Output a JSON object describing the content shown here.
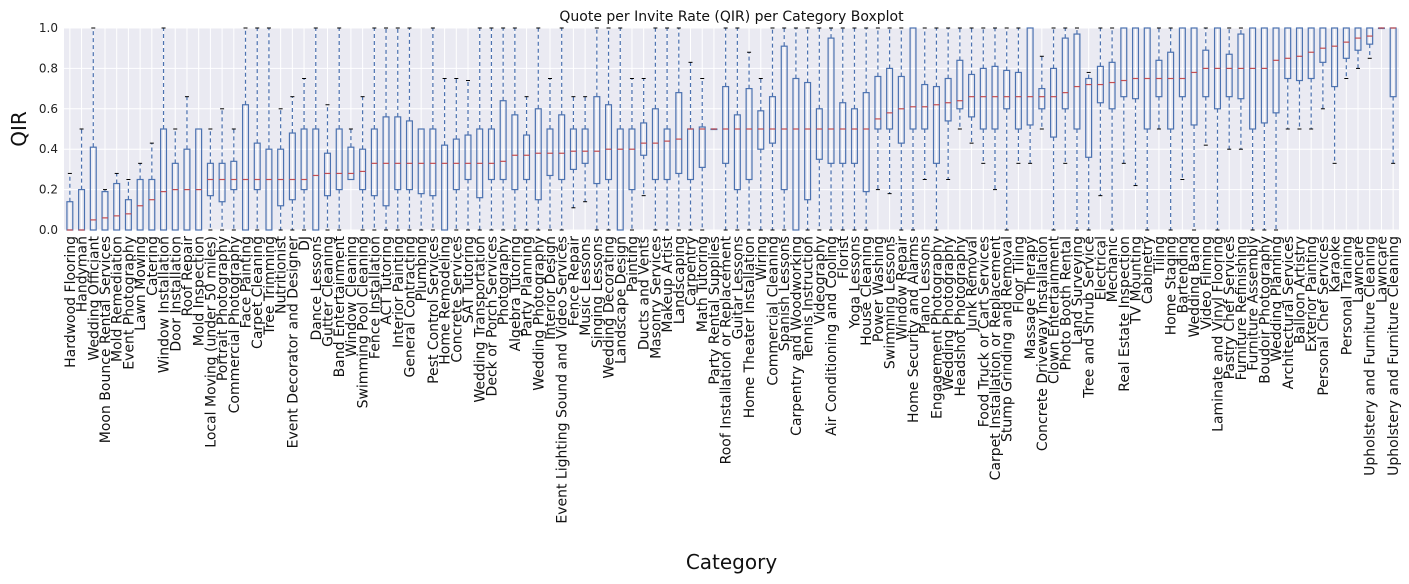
{
  "chart_data": {
    "type": "box",
    "title": "Quote per Invite Rate (QIR) per Category Boxplot",
    "xlabel": "Category",
    "ylabel": "QIR",
    "ylim": [
      0,
      1
    ],
    "yticks": [
      "0.0",
      "0.2",
      "0.4",
      "0.6",
      "0.8",
      "1.0"
    ],
    "grid": true,
    "colors": {
      "background": "#EAEAF2",
      "grid": "#FFFFFF",
      "box": "#4C72B0",
      "median": "#C44E52",
      "cap": "#000000"
    },
    "categories": [
      {
        "name": "Hardwood Flooring",
        "q1": 0.0,
        "med": 0.0,
        "q3": 0.14,
        "wlo": 0.0,
        "whi": 0.28
      },
      {
        "name": "Handyman",
        "q1": 0.0,
        "med": 0.0,
        "q3": 0.2,
        "wlo": 0.0,
        "whi": 0.5
      },
      {
        "name": "Wedding Officiant",
        "q1": 0.0,
        "med": 0.05,
        "q3": 0.41,
        "wlo": 0.0,
        "whi": 1.0
      },
      {
        "name": "Moon Bounce Rental Services",
        "q1": 0.0,
        "med": 0.06,
        "q3": 0.19,
        "wlo": 0.0,
        "whi": 0.2
      },
      {
        "name": "Mold Remediation",
        "q1": 0.0,
        "med": 0.07,
        "q3": 0.23,
        "wlo": 0.0,
        "whi": 0.28
      },
      {
        "name": "Event Photography",
        "q1": 0.0,
        "med": 0.08,
        "q3": 0.15,
        "wlo": 0.0,
        "whi": 0.25
      },
      {
        "name": "Lawn Mowing",
        "q1": 0.0,
        "med": 0.12,
        "q3": 0.25,
        "wlo": 0.0,
        "whi": 0.33
      },
      {
        "name": "Catering",
        "q1": 0.0,
        "med": 0.15,
        "q3": 0.25,
        "wlo": 0.0,
        "whi": 0.43
      },
      {
        "name": "Window Installation",
        "q1": 0.0,
        "med": 0.19,
        "q3": 0.5,
        "wlo": 0.0,
        "whi": 1.0
      },
      {
        "name": "Door Installation",
        "q1": 0.0,
        "med": 0.2,
        "q3": 0.33,
        "wlo": 0.0,
        "whi": 0.5
      },
      {
        "name": "Roof Repair",
        "q1": 0.0,
        "med": 0.2,
        "q3": 0.4,
        "wlo": 0.0,
        "whi": 0.66
      },
      {
        "name": "Mold Inspection",
        "q1": 0.0,
        "med": 0.2,
        "q3": 0.5,
        "wlo": 0.0,
        "whi": 0.5
      },
      {
        "name": "Local Moving (under 50 miles)",
        "q1": 0.17,
        "med": 0.25,
        "q3": 0.33,
        "wlo": 0.0,
        "whi": 0.5
      },
      {
        "name": "Portrait Photography",
        "q1": 0.14,
        "med": 0.25,
        "q3": 0.33,
        "wlo": 0.0,
        "whi": 0.6
      },
      {
        "name": "Commercial Photography",
        "q1": 0.2,
        "med": 0.25,
        "q3": 0.34,
        "wlo": 0.0,
        "whi": 0.5
      },
      {
        "name": "Face Painting",
        "q1": 0.0,
        "med": 0.25,
        "q3": 0.62,
        "wlo": 0.0,
        "whi": 1.0
      },
      {
        "name": "Carpet Cleaning",
        "q1": 0.2,
        "med": 0.25,
        "q3": 0.43,
        "wlo": 0.0,
        "whi": 1.0
      },
      {
        "name": "Tree Trimming",
        "q1": 0.0,
        "med": 0.25,
        "q3": 0.4,
        "wlo": 0.0,
        "whi": 1.0
      },
      {
        "name": "Nutritionist",
        "q1": 0.12,
        "med": 0.25,
        "q3": 0.4,
        "wlo": 0.0,
        "whi": 0.6
      },
      {
        "name": "Event Decorator and Designer",
        "q1": 0.15,
        "med": 0.25,
        "q3": 0.48,
        "wlo": 0.0,
        "whi": 0.66
      },
      {
        "name": "DJ",
        "q1": 0.2,
        "med": 0.25,
        "q3": 0.5,
        "wlo": 0.0,
        "whi": 0.75
      },
      {
        "name": "Dance Lessons",
        "q1": 0.0,
        "med": 0.27,
        "q3": 0.5,
        "wlo": 0.0,
        "whi": 1.0
      },
      {
        "name": "Gutter Cleaning",
        "q1": 0.17,
        "med": 0.28,
        "q3": 0.38,
        "wlo": 0.0,
        "whi": 0.62
      },
      {
        "name": "Band Entertainment",
        "q1": 0.2,
        "med": 0.28,
        "q3": 0.5,
        "wlo": 0.0,
        "whi": 1.0
      },
      {
        "name": "Window Cleaning",
        "q1": 0.25,
        "med": 0.28,
        "q3": 0.41,
        "wlo": 0.25,
        "whi": 0.5
      },
      {
        "name": "Swimming Pool Cleaning",
        "q1": 0.2,
        "med": 0.29,
        "q3": 0.4,
        "wlo": 0.0,
        "whi": 0.66
      },
      {
        "name": "Fence Installation",
        "q1": 0.17,
        "med": 0.33,
        "q3": 0.5,
        "wlo": 0.0,
        "whi": 1.0
      },
      {
        "name": "ACT Tutoring",
        "q1": 0.12,
        "med": 0.33,
        "q3": 0.56,
        "wlo": 0.0,
        "whi": 1.0
      },
      {
        "name": "Interior Painting",
        "q1": 0.2,
        "med": 0.33,
        "q3": 0.56,
        "wlo": 0.0,
        "whi": 1.0
      },
      {
        "name": "General Contracting",
        "q1": 0.2,
        "med": 0.33,
        "q3": 0.54,
        "wlo": 0.0,
        "whi": 1.0
      },
      {
        "name": "Plumbing",
        "q1": 0.18,
        "med": 0.33,
        "q3": 0.5,
        "wlo": 0.0,
        "whi": 0.5
      },
      {
        "name": "Pest Control Services",
        "q1": 0.17,
        "med": 0.33,
        "q3": 0.5,
        "wlo": 0.0,
        "whi": 1.0
      },
      {
        "name": "Home Remodeling",
        "q1": 0.0,
        "med": 0.33,
        "q3": 0.42,
        "wlo": 0.0,
        "whi": 0.75
      },
      {
        "name": "Concrete Services",
        "q1": 0.2,
        "med": 0.33,
        "q3": 0.45,
        "wlo": 0.0,
        "whi": 0.75
      },
      {
        "name": "SAT Tutoring",
        "q1": 0.25,
        "med": 0.33,
        "q3": 0.47,
        "wlo": 0.0,
        "whi": 0.74
      },
      {
        "name": "Wedding Transportation",
        "q1": 0.16,
        "med": 0.33,
        "q3": 0.5,
        "wlo": 0.0,
        "whi": 1.0
      },
      {
        "name": "Deck or Porch Services",
        "q1": 0.25,
        "med": 0.33,
        "q3": 0.5,
        "wlo": 0.0,
        "whi": 1.0
      },
      {
        "name": "Photography",
        "q1": 0.25,
        "med": 0.34,
        "q3": 0.64,
        "wlo": 0.0,
        "whi": 1.0
      },
      {
        "name": "Algebra Tutoring",
        "q1": 0.2,
        "med": 0.37,
        "q3": 0.57,
        "wlo": 0.0,
        "whi": 1.0
      },
      {
        "name": "Party Planning",
        "q1": 0.25,
        "med": 0.37,
        "q3": 0.47,
        "wlo": 0.0,
        "whi": 0.66
      },
      {
        "name": "Wedding Photography",
        "q1": 0.15,
        "med": 0.38,
        "q3": 0.6,
        "wlo": 0.0,
        "whi": 1.0
      },
      {
        "name": "Interior Design",
        "q1": 0.27,
        "med": 0.38,
        "q3": 0.5,
        "wlo": 0.0,
        "whi": 0.75
      },
      {
        "name": "Event Lighting Sound and Video Services",
        "q1": 0.25,
        "med": 0.38,
        "q3": 0.57,
        "wlo": 0.0,
        "whi": 1.0
      },
      {
        "name": "Fence Repair",
        "q1": 0.3,
        "med": 0.39,
        "q3": 0.5,
        "wlo": 0.11,
        "whi": 0.66
      },
      {
        "name": "Music Lessons",
        "q1": 0.33,
        "med": 0.39,
        "q3": 0.5,
        "wlo": 0.14,
        "whi": 0.66
      },
      {
        "name": "Singing Lessons",
        "q1": 0.23,
        "med": 0.39,
        "q3": 0.66,
        "wlo": 0.0,
        "whi": 1.0
      },
      {
        "name": "Wedding Decorating",
        "q1": 0.25,
        "med": 0.4,
        "q3": 0.62,
        "wlo": 0.0,
        "whi": 1.0
      },
      {
        "name": "Landscape Design",
        "q1": 0.0,
        "med": 0.4,
        "q3": 0.5,
        "wlo": 0.0,
        "whi": 1.0
      },
      {
        "name": "Painting",
        "q1": 0.2,
        "med": 0.4,
        "q3": 0.5,
        "wlo": 0.0,
        "whi": 0.75
      },
      {
        "name": "Ducts and Vents",
        "q1": 0.37,
        "med": 0.43,
        "q3": 0.53,
        "wlo": 0.17,
        "whi": 0.75
      },
      {
        "name": "Masonry Services",
        "q1": 0.25,
        "med": 0.43,
        "q3": 0.6,
        "wlo": 0.0,
        "whi": 1.0
      },
      {
        "name": "Makeup Artist",
        "q1": 0.25,
        "med": 0.44,
        "q3": 0.5,
        "wlo": 0.0,
        "whi": 1.0
      },
      {
        "name": "Landscaping",
        "q1": 0.28,
        "med": 0.45,
        "q3": 0.68,
        "wlo": 0.0,
        "whi": 1.0
      },
      {
        "name": "Carpentry",
        "q1": 0.25,
        "med": 0.5,
        "q3": 0.5,
        "wlo": 0.0,
        "whi": 0.83
      },
      {
        "name": "Math Tutoring",
        "q1": 0.31,
        "med": 0.5,
        "q3": 0.51,
        "wlo": 0.0,
        "whi": 0.75
      },
      {
        "name": "Party Rental Supplies",
        "q1": 0.5,
        "med": 0.5,
        "q3": 0.5,
        "wlo": 0.5,
        "whi": 0.5
      },
      {
        "name": "Roof Installation or Replacement",
        "q1": 0.33,
        "med": 0.5,
        "q3": 0.71,
        "wlo": 0.0,
        "whi": 1.0
      },
      {
        "name": "Guitar Lessons",
        "q1": 0.2,
        "med": 0.5,
        "q3": 0.57,
        "wlo": 0.0,
        "whi": 1.0
      },
      {
        "name": "Home Theater Installation",
        "q1": 0.25,
        "med": 0.5,
        "q3": 0.7,
        "wlo": 0.0,
        "whi": 0.88
      },
      {
        "name": "Wiring",
        "q1": 0.4,
        "med": 0.5,
        "q3": 0.59,
        "wlo": 0.0,
        "whi": 0.75
      },
      {
        "name": "Commercial Cleaning",
        "q1": 0.43,
        "med": 0.5,
        "q3": 0.66,
        "wlo": 0.0,
        "whi": 1.0
      },
      {
        "name": "Spanish Lessons",
        "q1": 0.2,
        "med": 0.5,
        "q3": 0.91,
        "wlo": 0.0,
        "whi": 1.0
      },
      {
        "name": "Carpentry and Woodworking",
        "q1": 0.0,
        "med": 0.5,
        "q3": 0.75,
        "wlo": 0.0,
        "whi": 1.0
      },
      {
        "name": "Tennis Instruction",
        "q1": 0.15,
        "med": 0.5,
        "q3": 0.73,
        "wlo": 0.0,
        "whi": 1.0
      },
      {
        "name": "Videography",
        "q1": 0.35,
        "med": 0.5,
        "q3": 0.6,
        "wlo": 0.0,
        "whi": 1.0
      },
      {
        "name": "Air Conditioning and Cooling",
        "q1": 0.33,
        "med": 0.5,
        "q3": 0.95,
        "wlo": 0.0,
        "whi": 1.0
      },
      {
        "name": "Florist",
        "q1": 0.33,
        "med": 0.5,
        "q3": 0.63,
        "wlo": 0.0,
        "whi": 1.0
      },
      {
        "name": "Yoga Lessons",
        "q1": 0.33,
        "med": 0.5,
        "q3": 0.6,
        "wlo": 0.0,
        "whi": 1.0
      },
      {
        "name": "House Cleaning",
        "q1": 0.19,
        "med": 0.5,
        "q3": 0.68,
        "wlo": 0.0,
        "whi": 1.0
      },
      {
        "name": "Power Washing",
        "q1": 0.5,
        "med": 0.55,
        "q3": 0.76,
        "wlo": 0.2,
        "whi": 1.0
      },
      {
        "name": "Swimming Lessons",
        "q1": 0.5,
        "med": 0.58,
        "q3": 0.8,
        "wlo": 0.18,
        "whi": 1.0
      },
      {
        "name": "Window Repair",
        "q1": 0.43,
        "med": 0.6,
        "q3": 0.76,
        "wlo": 0.0,
        "whi": 1.0
      },
      {
        "name": "Home Security and Alarms",
        "q1": 0.5,
        "med": 0.61,
        "q3": 1.0,
        "wlo": 0.0,
        "whi": 1.0
      },
      {
        "name": "Piano Lessons",
        "q1": 0.5,
        "med": 0.61,
        "q3": 0.72,
        "wlo": 0.25,
        "whi": 1.0
      },
      {
        "name": "Engagement Photography",
        "q1": 0.33,
        "med": 0.62,
        "q3": 0.71,
        "wlo": 0.0,
        "whi": 1.0
      },
      {
        "name": "Wedding Photography",
        "q1": 0.54,
        "med": 0.63,
        "q3": 0.75,
        "wlo": 0.25,
        "whi": 1.0
      },
      {
        "name": "Headshot Photography",
        "q1": 0.6,
        "med": 0.64,
        "q3": 0.84,
        "wlo": 0.5,
        "whi": 1.0
      },
      {
        "name": "Junk Removal",
        "q1": 0.56,
        "med": 0.66,
        "q3": 0.77,
        "wlo": 0.43,
        "whi": 1.0
      },
      {
        "name": "Food Truck or Cart Services",
        "q1": 0.5,
        "med": 0.66,
        "q3": 0.8,
        "wlo": 0.33,
        "whi": 1.0
      },
      {
        "name": "Carpet Installation or Replacement",
        "q1": 0.5,
        "med": 0.66,
        "q3": 0.81,
        "wlo": 0.2,
        "whi": 1.0
      },
      {
        "name": "Stump Grinding and Removal",
        "q1": 0.6,
        "med": 0.66,
        "q3": 0.79,
        "wlo": 0.0,
        "whi": 1.0
      },
      {
        "name": "Floor Tiling",
        "q1": 0.5,
        "med": 0.66,
        "q3": 0.78,
        "wlo": 0.33,
        "whi": 1.0
      },
      {
        "name": "Massage Therapy",
        "q1": 0.52,
        "med": 0.66,
        "q3": 1.0,
        "wlo": 0.33,
        "whi": 1.0
      },
      {
        "name": "Concrete Driveway Installation",
        "q1": 0.6,
        "med": 0.66,
        "q3": 0.7,
        "wlo": 0.5,
        "whi": 0.86
      },
      {
        "name": "Clown Entertainment",
        "q1": 0.46,
        "med": 0.66,
        "q3": 0.8,
        "wlo": 0.0,
        "whi": 1.0
      },
      {
        "name": "Photo Booth Rental",
        "q1": 0.6,
        "med": 0.68,
        "q3": 0.95,
        "wlo": 0.33,
        "whi": 1.0
      },
      {
        "name": "Land Surveying",
        "q1": 0.5,
        "med": 0.71,
        "q3": 0.97,
        "wlo": 0.0,
        "whi": 1.0
      },
      {
        "name": "Tree and Shrub Service",
        "q1": 0.36,
        "med": 0.72,
        "q3": 0.75,
        "wlo": 0.0,
        "whi": 0.78
      },
      {
        "name": "Electrical",
        "q1": 0.63,
        "med": 0.72,
        "q3": 0.81,
        "wlo": 0.17,
        "whi": 1.0
      },
      {
        "name": "Mechanic",
        "q1": 0.6,
        "med": 0.73,
        "q3": 0.83,
        "wlo": 0.0,
        "whi": 1.0
      },
      {
        "name": "Real Estate Inspection",
        "q1": 0.66,
        "med": 0.74,
        "q3": 1.0,
        "wlo": 0.33,
        "whi": 1.0
      },
      {
        "name": "TV Mounting",
        "q1": 0.65,
        "med": 0.75,
        "q3": 1.0,
        "wlo": 0.22,
        "whi": 1.0
      },
      {
        "name": "Cabinetry",
        "q1": 0.5,
        "med": 0.75,
        "q3": 1.0,
        "wlo": 0.0,
        "whi": 1.0
      },
      {
        "name": "Tiling",
        "q1": 0.66,
        "med": 0.75,
        "q3": 0.84,
        "wlo": 0.5,
        "whi": 1.0
      },
      {
        "name": "Home Staging",
        "q1": 0.5,
        "med": 0.75,
        "q3": 0.88,
        "wlo": 0.0,
        "whi": 1.0
      },
      {
        "name": "Bartending",
        "q1": 0.66,
        "med": 0.75,
        "q3": 1.0,
        "wlo": 0.25,
        "whi": 1.0
      },
      {
        "name": "Wedding Band",
        "q1": 0.52,
        "med": 0.78,
        "q3": 1.0,
        "wlo": 0.0,
        "whi": 1.0
      },
      {
        "name": "Video Filming",
        "q1": 0.66,
        "med": 0.8,
        "q3": 0.89,
        "wlo": 0.42,
        "whi": 1.0
      },
      {
        "name": "Laminate and Vinyl Flooring",
        "q1": 0.6,
        "med": 0.8,
        "q3": 1.0,
        "wlo": 0.0,
        "whi": 1.0
      },
      {
        "name": "Pastry Chef Services",
        "q1": 0.66,
        "med": 0.8,
        "q3": 0.87,
        "wlo": 0.4,
        "whi": 1.0
      },
      {
        "name": "Furniture Refinishing",
        "q1": 0.65,
        "med": 0.8,
        "q3": 0.97,
        "wlo": 0.4,
        "whi": 1.0
      },
      {
        "name": "Furniture Assembly",
        "q1": 0.5,
        "med": 0.8,
        "q3": 1.0,
        "wlo": 0.0,
        "whi": 1.0
      },
      {
        "name": "Boudoir Photography",
        "q1": 0.53,
        "med": 0.8,
        "q3": 1.0,
        "wlo": 0.0,
        "whi": 1.0
      },
      {
        "name": "Wedding Planning",
        "q1": 0.58,
        "med": 0.84,
        "q3": 1.0,
        "wlo": 0.0,
        "whi": 1.0
      },
      {
        "name": "Architectural Services",
        "q1": 0.75,
        "med": 0.85,
        "q3": 1.0,
        "wlo": 0.5,
        "whi": 1.0
      },
      {
        "name": "Balloon Artistry",
        "q1": 0.74,
        "med": 0.86,
        "q3": 1.0,
        "wlo": 0.5,
        "whi": 1.0
      },
      {
        "name": "Exterior Painting",
        "q1": 0.75,
        "med": 0.88,
        "q3": 1.0,
        "wlo": 0.5,
        "whi": 1.0
      },
      {
        "name": "Personal Chef Services",
        "q1": 0.83,
        "med": 0.9,
        "q3": 1.0,
        "wlo": 0.6,
        "whi": 1.0
      },
      {
        "name": "Karaoke",
        "q1": 0.71,
        "med": 0.91,
        "q3": 1.0,
        "wlo": 0.33,
        "whi": 1.0
      },
      {
        "name": "Personal Training",
        "q1": 0.85,
        "med": 0.93,
        "q3": 1.0,
        "wlo": 0.75,
        "whi": 1.0
      },
      {
        "name": "Lawncare",
        "q1": 0.89,
        "med": 0.95,
        "q3": 1.0,
        "wlo": 0.8,
        "whi": 1.0
      },
      {
        "name": "Upholstery and Furniture Cleaning",
        "q1": 0.92,
        "med": 0.96,
        "q3": 1.0,
        "wlo": 0.85,
        "whi": 1.0
      },
      {
        "name": "Lawncare",
        "q1": 1.0,
        "med": 1.0,
        "q3": 1.0,
        "wlo": 1.0,
        "whi": 1.0
      },
      {
        "name": "Upholstery and Furniture Cleaning",
        "q1": 0.66,
        "med": 1.0,
        "q3": 1.0,
        "wlo": 0.33,
        "whi": 1.0
      }
    ]
  }
}
